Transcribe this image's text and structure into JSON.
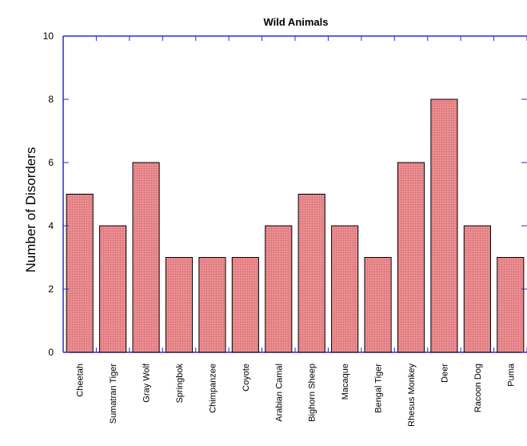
{
  "chart_data": {
    "type": "bar",
    "title": "Wild Animals",
    "xlabel": "",
    "ylabel": "Number of Disorders",
    "categories": [
      "Cheetah",
      "Sumatran Tiger",
      "Gray Wolf",
      "Springbok",
      "Chimpanzee",
      "Coyote",
      "Arabian Camal",
      "Bighorn Sheep",
      "Macaque",
      "Bengal Tiger",
      "Rhesus Monkey",
      "Deer",
      "Racoon Dog",
      "Puma"
    ],
    "values": [
      5,
      4,
      6,
      3,
      3,
      3,
      4,
      5,
      4,
      3,
      6,
      8,
      4,
      3
    ],
    "ylim": [
      0,
      10
    ],
    "yticks": [
      "0",
      "2",
      "4",
      "6",
      "8",
      "10"
    ],
    "grid": false,
    "legend": "none",
    "colors": {
      "bar_fill": "#e8878b",
      "bar_stroke": "#000000",
      "axis": "#2b2bd6"
    }
  }
}
